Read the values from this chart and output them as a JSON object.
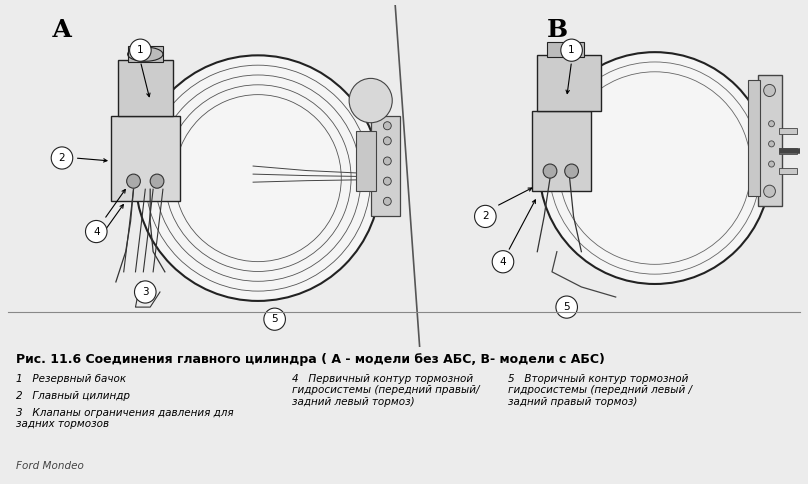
{
  "bg_color": "#ececec",
  "diagram_bg": "#ffffff",
  "border_color": "#999999",
  "title_bold": "Рис. 11.6 Соединения главного цилиндра ( А - модели без АБС, В- модели с АБС)",
  "label_A": "А",
  "label_B": "В",
  "footer": "Ford Mondeo",
  "legend_items": [
    {
      "num": "1",
      "text": "Резервный бачок"
    },
    {
      "num": "2",
      "text": "Главный цилиндр"
    },
    {
      "num": "3",
      "text": "Клапаны ограничения давления для\nзадних тормозов"
    },
    {
      "num": "4",
      "text": "Первичный контур тормозной\nгидросистемы (передний правый/\nзадний левый тормоз)"
    },
    {
      "num": "5",
      "text": "Вторичный контур тормозной\nгидросистемы (передний левый /\nзадний правый тормоз)"
    }
  ],
  "font_size_legend_title": 9.0,
  "font_size_legend_body": 7.5,
  "font_size_labels": 18,
  "font_size_numbers": 8,
  "font_size_footer": 7.5
}
